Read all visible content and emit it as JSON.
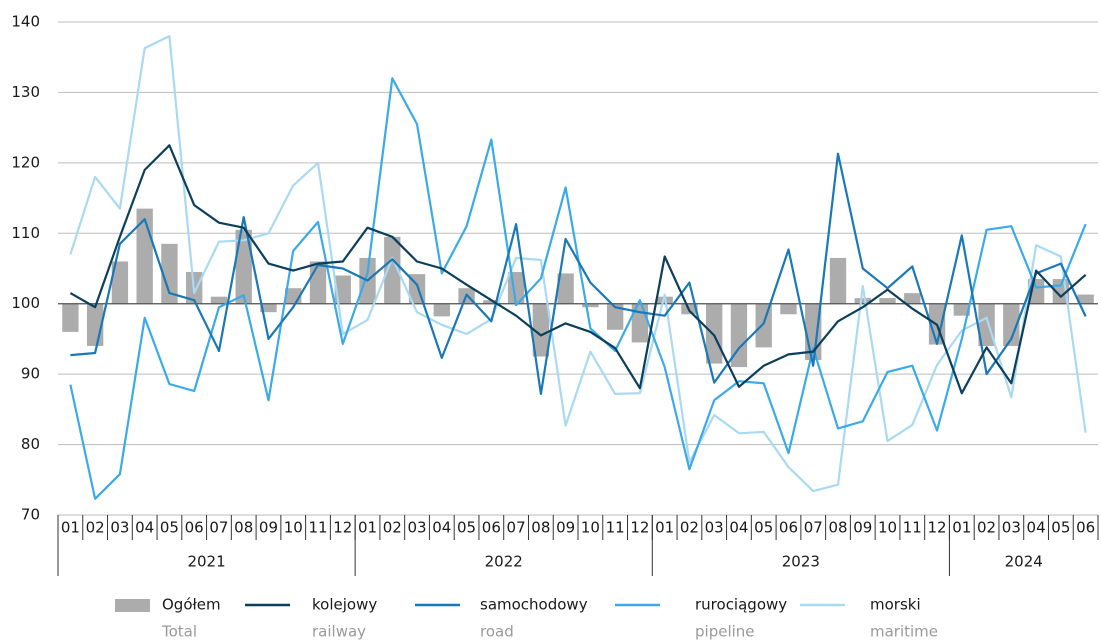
{
  "chart_data": {
    "type": "bar-line",
    "categories": [
      "01",
      "02",
      "03",
      "04",
      "05",
      "06",
      "07",
      "08",
      "09",
      "10",
      "11",
      "12",
      "01",
      "02",
      "03",
      "04",
      "05",
      "06",
      "07",
      "08",
      "09",
      "10",
      "11",
      "12",
      "01",
      "02",
      "03",
      "04",
      "05",
      "06",
      "07",
      "08",
      "09",
      "10",
      "11",
      "12",
      "01",
      "02",
      "03",
      "04",
      "05",
      "06"
    ],
    "years": [
      "2021",
      "2022",
      "2023",
      "2024"
    ],
    "ylim": [
      70,
      140
    ],
    "yticks": [
      70,
      80,
      90,
      100,
      110,
      120,
      130,
      140
    ],
    "grid": true,
    "bar_base": 100,
    "legend": "bottom",
    "series": [
      {
        "name": "Ogółem",
        "name_en": "Total",
        "type": "bar",
        "color": "#acacac",
        "values": [
          96,
          94,
          106,
          113.5,
          108.5,
          104.5,
          101,
          110.5,
          98.8,
          102.2,
          106,
          104,
          106.5,
          109.5,
          104.2,
          98.2,
          102.2,
          100.5,
          104.5,
          92.5,
          104.3,
          99.5,
          96.3,
          94.5,
          101,
          98.5,
          91.5,
          91,
          93.8,
          98.5,
          92,
          106.5,
          100.8,
          100.8,
          101.5,
          94.2,
          98.3,
          94,
          94,
          103.5,
          103.5,
          101.3
        ]
      },
      {
        "name": "kolejowy",
        "name_en": "railway",
        "type": "line",
        "color": "#0b3f5c",
        "values": [
          101.5,
          99.5,
          109.5,
          119,
          122.5,
          114,
          111.5,
          110.8,
          105.7,
          104.7,
          105.7,
          106,
          110.8,
          109.5,
          106,
          105,
          102.7,
          100.5,
          98.3,
          95.5,
          97.2,
          96,
          93.7,
          88,
          106.7,
          99,
          95.5,
          88.2,
          91.2,
          92.8,
          93.2,
          97.5,
          99.5,
          102,
          99.3,
          97,
          87.3,
          93.8,
          88.7,
          104.7,
          101,
          104.1
        ]
      },
      {
        "name": "samochodowy",
        "name_en": "road",
        "type": "line",
        "color": "#1a78b7",
        "values": [
          92.7,
          93,
          108.5,
          112,
          101.5,
          100.5,
          93.3,
          112.3,
          95,
          99.5,
          105.5,
          105,
          103.3,
          106.3,
          102.7,
          92.3,
          101.3,
          97.5,
          111.3,
          87.2,
          109.2,
          103,
          99.5,
          98.8,
          98.3,
          103,
          88.8,
          93.7,
          97.2,
          107.7,
          91.2,
          121.3,
          105,
          102.2,
          105.3,
          94.3,
          109.7,
          90,
          95,
          104.3,
          105.7,
          98.2
        ]
      },
      {
        "name": "rurociągowy",
        "name_en": "pipeline",
        "type": "line",
        "color": "#3aaae8",
        "values": [
          88.5,
          72.3,
          75.8,
          98,
          88.6,
          87.6,
          99.5,
          101.2,
          86.3,
          107.5,
          111.6,
          94.3,
          104.3,
          132,
          125.5,
          104.3,
          111,
          123.3,
          99.8,
          103.6,
          116.5,
          96.5,
          93.3,
          100.5,
          91,
          76.5,
          86.3,
          89,
          88.7,
          78.8,
          93.7,
          82.3,
          83.3,
          90.3,
          91.2,
          82,
          95,
          110.5,
          111,
          102.3,
          102.6,
          111.3
        ]
      },
      {
        "name": "morski",
        "name_en": "maritime",
        "type": "line",
        "color": "#aad9f2",
        "values": [
          107,
          118,
          113.5,
          136.3,
          138,
          101.5,
          108.8,
          109,
          110,
          116.8,
          120,
          95.7,
          97.7,
          106.5,
          98.8,
          97,
          95.7,
          97.8,
          106.5,
          106.2,
          82.7,
          93.2,
          87.2,
          87.3,
          101.3,
          77.5,
          84.2,
          81.6,
          81.8,
          76.8,
          73.4,
          74.3,
          102.5,
          80.5,
          82.8,
          91.3,
          96.2,
          98,
          86.7,
          108.3,
          106.7,
          81.7
        ]
      }
    ]
  }
}
